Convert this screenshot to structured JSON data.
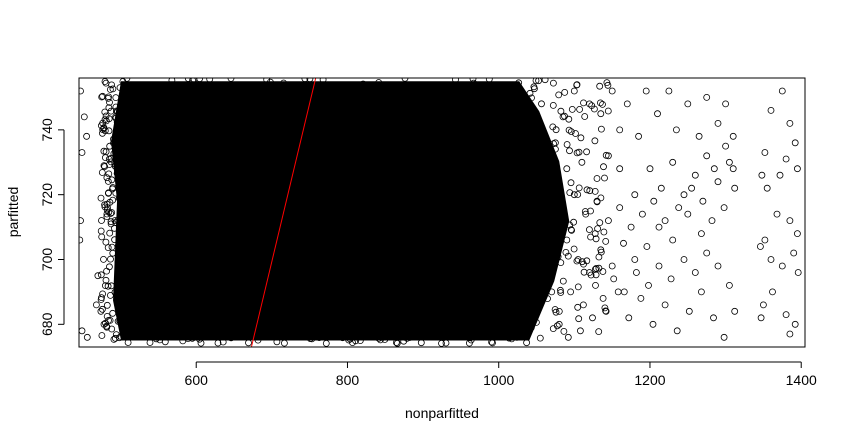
{
  "chart_data": {
    "type": "scatter",
    "title": "",
    "xlabel": "nonparfitted",
    "ylabel": "parfitted",
    "xlim": [
      445,
      1405
    ],
    "ylim": [
      673,
      756
    ],
    "x_ticks": [
      600,
      800,
      1000,
      1200,
      1400
    ],
    "y_ticks": [
      680,
      700,
      720,
      740
    ],
    "grid": false,
    "legend": "none",
    "marker": "open-circle",
    "point_color": "#000000",
    "dense_region": {
      "x_range": [
        490,
        1080
      ],
      "y_range": [
        675,
        755
      ]
    },
    "reference_line": {
      "color": "#ff0000",
      "points": [
        [
          673,
          673
        ],
        [
          758,
          756
        ]
      ]
    },
    "sparse_points": [
      [
        447,
        752
      ],
      [
        452,
        744
      ],
      [
        455,
        738
      ],
      [
        449,
        733
      ],
      [
        447,
        712
      ],
      [
        446,
        706
      ],
      [
        449,
        678
      ],
      [
        456,
        676
      ],
      [
        470,
        695
      ],
      [
        468,
        686
      ],
      [
        474,
        684
      ],
      [
        478,
        680
      ],
      [
        1100,
        752
      ],
      [
        1120,
        748
      ],
      [
        1135,
        745
      ],
      [
        1150,
        752
      ],
      [
        1160,
        740
      ],
      [
        1170,
        748
      ],
      [
        1185,
        738
      ],
      [
        1195,
        752
      ],
      [
        1210,
        745
      ],
      [
        1225,
        752
      ],
      [
        1235,
        740
      ],
      [
        1250,
        748
      ],
      [
        1265,
        738
      ],
      [
        1275,
        750
      ],
      [
        1290,
        742
      ],
      [
        1300,
        748
      ],
      [
        1310,
        738
      ],
      [
        1360,
        746
      ],
      [
        1375,
        752
      ],
      [
        1385,
        742
      ],
      [
        1392,
        736
      ],
      [
        1395,
        728
      ],
      [
        1380,
        731
      ],
      [
        1372,
        726
      ],
      [
        1352,
        733
      ],
      [
        1348,
        726
      ],
      [
        1355,
        722
      ],
      [
        1368,
        714
      ],
      [
        1385,
        712
      ],
      [
        1395,
        708
      ],
      [
        1352,
        706
      ],
      [
        1346,
        704
      ],
      [
        1360,
        700
      ],
      [
        1375,
        698
      ],
      [
        1390,
        702
      ],
      [
        1396,
        696
      ],
      [
        1350,
        686
      ],
      [
        1362,
        690
      ],
      [
        1380,
        683
      ],
      [
        1392,
        680
      ],
      [
        1385,
        677
      ],
      [
        1347,
        682
      ],
      [
        1110,
        730
      ],
      [
        1130,
        725
      ],
      [
        1145,
        732
      ],
      [
        1160,
        728
      ],
      [
        1180,
        720
      ],
      [
        1200,
        728
      ],
      [
        1215,
        722
      ],
      [
        1230,
        730
      ],
      [
        1245,
        720
      ],
      [
        1260,
        726
      ],
      [
        1275,
        732
      ],
      [
        1290,
        724
      ],
      [
        1305,
        730
      ],
      [
        1312,
        722
      ],
      [
        1298,
        716
      ],
      [
        1282,
        712
      ],
      [
        1268,
        708
      ],
      [
        1250,
        714
      ],
      [
        1230,
        706
      ],
      [
        1212,
        710
      ],
      [
        1196,
        704
      ],
      [
        1180,
        700
      ],
      [
        1165,
        705
      ],
      [
        1150,
        698
      ],
      [
        1135,
        703
      ],
      [
        1120,
        696
      ],
      [
        1105,
        700
      ],
      [
        1090,
        706
      ],
      [
        1095,
        690
      ],
      [
        1112,
        686
      ],
      [
        1128,
        692
      ],
      [
        1142,
        684
      ],
      [
        1158,
        690
      ],
      [
        1172,
        682
      ],
      [
        1188,
        688
      ],
      [
        1204,
        680
      ],
      [
        1220,
        686
      ],
      [
        1236,
        678
      ],
      [
        1252,
        684
      ],
      [
        1268,
        690
      ],
      [
        1284,
        682
      ],
      [
        1298,
        676
      ],
      [
        1312,
        684
      ],
      [
        1305,
        692
      ],
      [
        1290,
        698
      ],
      [
        1275,
        702
      ],
      [
        1260,
        696
      ],
      [
        1245,
        700
      ],
      [
        1228,
        694
      ],
      [
        1212,
        698
      ],
      [
        1198,
        692
      ],
      [
        1182,
        696
      ],
      [
        1166,
        690
      ],
      [
        1152,
        694
      ],
      [
        1138,
        688
      ],
      [
        1124,
        682
      ],
      [
        1108,
        678
      ],
      [
        1092,
        676
      ],
      [
        1080,
        680
      ],
      [
        1070,
        690
      ],
      [
        1085,
        744
      ],
      [
        1075,
        736
      ],
      [
        1090,
        728
      ],
      [
        1100,
        720
      ],
      [
        1115,
        714
      ],
      [
        1130,
        718
      ],
      [
        1145,
        712
      ],
      [
        1160,
        716
      ],
      [
        1175,
        710
      ],
      [
        1190,
        714
      ],
      [
        1205,
        718
      ],
      [
        1220,
        712
      ],
      [
        1238,
        716
      ],
      [
        1255,
        722
      ],
      [
        1270,
        718
      ],
      [
        1285,
        728
      ],
      [
        1300,
        735
      ],
      [
        1310,
        728
      ]
    ]
  }
}
